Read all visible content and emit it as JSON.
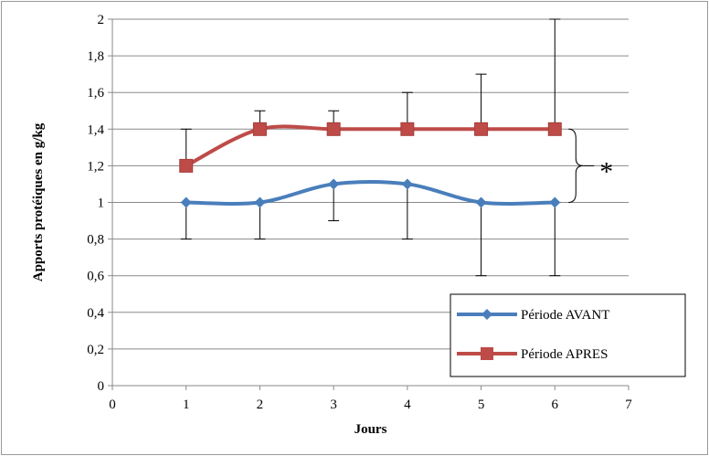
{
  "chart_data": {
    "type": "line",
    "xlabel": "Jours",
    "ylabel": "Apports protéiques  en g/kg",
    "xlim": [
      0,
      7
    ],
    "ylim": [
      0,
      2
    ],
    "x_ticks": [
      "0",
      "1",
      "2",
      "3",
      "4",
      "5",
      "6",
      "7"
    ],
    "y_ticks": [
      "0",
      "0,2",
      "0,4",
      "0,6",
      "0,8",
      "1",
      "1,2",
      "1,4",
      "1,6",
      "1,8",
      "2"
    ],
    "grid": "horizontal",
    "legend_position": "bottom-right",
    "significance_annotation": "*",
    "series": [
      {
        "name": "Période AVANT",
        "color": "#4a7ebb",
        "marker": "diamond",
        "x": [
          1,
          2,
          3,
          4,
          5,
          6
        ],
        "y": [
          1.0,
          1.0,
          1.1,
          1.1,
          1.0,
          1.0
        ],
        "error_upper": [
          1.0,
          1.0,
          1.1,
          1.1,
          1.0,
          1.0
        ],
        "error_lower": [
          0.8,
          0.8,
          0.9,
          0.8,
          0.6,
          0.6
        ]
      },
      {
        "name": "Période APRES",
        "color": "#be4b48",
        "marker": "square",
        "x": [
          1,
          2,
          3,
          4,
          5,
          6
        ],
        "y": [
          1.2,
          1.4,
          1.4,
          1.4,
          1.4,
          1.4
        ],
        "error_upper": [
          1.4,
          1.5,
          1.5,
          1.6,
          1.7,
          2.0
        ],
        "error_lower": [
          1.2,
          1.4,
          1.4,
          1.4,
          1.4,
          1.4
        ]
      }
    ]
  }
}
